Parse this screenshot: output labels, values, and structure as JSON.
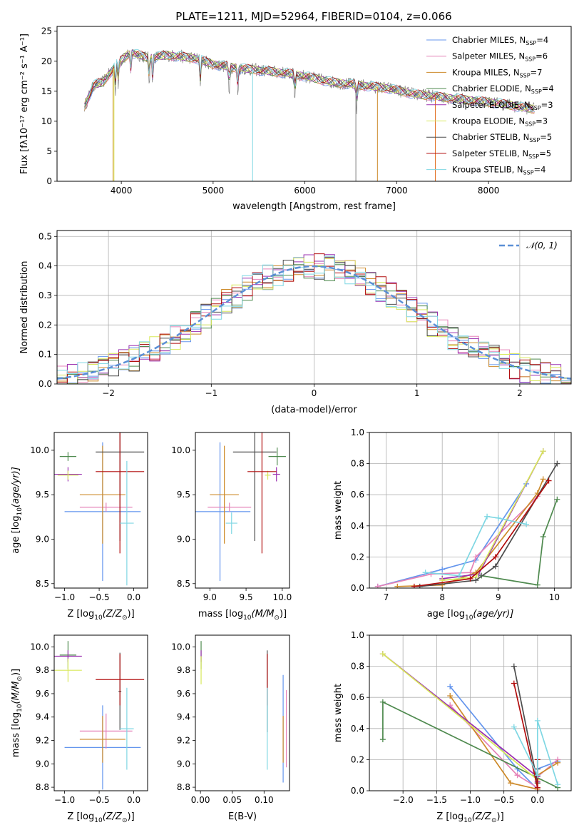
{
  "figure": {
    "title": "PLATE=1211, MJD=52964, FIBERID=0104, z=0.066",
    "colors": {
      "Chabrier MILES": "#6495ed",
      "Salpeter MILES": "#e582b8",
      "Kroupa MILES": "#cd8a2a",
      "Chabrier ELODIE": "#4f8a4f",
      "Salpeter ELODIE": "#9b30b0",
      "Kroupa ELODIE": "#d8e85a",
      "Chabrier STELIB": "#4d4d4d",
      "Salpeter STELIB": "#b20e0e",
      "Kroupa STELIB": "#7fd7e3",
      "data": "#808080",
      "highlight": "#e06a1a",
      "normal": "#5b8fd6"
    }
  },
  "chart_data": [
    {
      "id": "spectrum",
      "type": "line",
      "title": "PLATE=1211, MJD=52964, FIBERID=0104, z=0.066",
      "xlabel": "wavelength [Angstrom, rest frame]",
      "ylabel": "Flux [fλ10⁻¹⁷ erg cm⁻² s⁻¹ A⁻¹]",
      "xlim": [
        3300,
        8900
      ],
      "ylim": [
        0,
        25.8
      ],
      "xticks": [
        4000,
        5000,
        6000,
        7000,
        8000
      ],
      "yticks": [
        0,
        5,
        10,
        15,
        20,
        25
      ],
      "legend_position": "top-right",
      "legend": [
        {
          "name": "Chabrier MILES",
          "nssp": "4"
        },
        {
          "name": "Salpeter MILES",
          "nssp": "6"
        },
        {
          "name": "Kroupa MILES",
          "nssp": "7"
        },
        {
          "name": "Chabrier ELODIE",
          "nssp": "4"
        },
        {
          "name": "Salpeter ELODIE",
          "nssp": "3"
        },
        {
          "name": "Kroupa ELODIE",
          "nssp": "3"
        },
        {
          "name": "Chabrier STELIB",
          "nssp": "5"
        },
        {
          "name": "Salpeter STELIB",
          "nssp": "5"
        },
        {
          "name": "Kroupa STELIB",
          "nssp": "4"
        }
      ],
      "continuum": [
        [
          3600,
          12.5
        ],
        [
          3700,
          16
        ],
        [
          3800,
          16.5
        ],
        [
          3950,
          19.5
        ],
        [
          4100,
          21.5
        ],
        [
          4300,
          20.5
        ],
        [
          4500,
          21
        ],
        [
          4800,
          20.5
        ],
        [
          5000,
          19.5
        ],
        [
          5200,
          19
        ],
        [
          5500,
          18.5
        ],
        [
          5800,
          18
        ],
        [
          6000,
          17.5
        ],
        [
          6300,
          16.5
        ],
        [
          6600,
          16
        ],
        [
          6900,
          15.5
        ],
        [
          7200,
          14.5
        ],
        [
          7500,
          14
        ],
        [
          7800,
          13.5
        ],
        [
          8100,
          13
        ],
        [
          8500,
          12
        ]
      ],
      "grid": false
    },
    {
      "id": "residuals",
      "type": "line",
      "xlabel": "(data-model)/error",
      "ylabel": "Normed distribution",
      "xlim": [
        -2.5,
        2.5
      ],
      "ylim": [
        0,
        0.52
      ],
      "xticks": [
        -2,
        -1,
        0,
        1,
        2
      ],
      "yticks": [
        0.0,
        0.1,
        0.2,
        0.3,
        0.4,
        0.5
      ],
      "legend_label": "𝒩(0, 1)",
      "legend_position": "top-right",
      "normal_curve": {
        "mean": 0,
        "sigma": 1
      },
      "grid": true
    },
    {
      "id": "age-vs-z",
      "type": "scatter",
      "xlabel_plain": "Z [log",
      "xlabel_tail": "(Z/Z",
      "xlabel_end": ")]",
      "ylabel_plain": "age  [log",
      "ylabel_tail": "(age/yr)]",
      "xlim": [
        -1.15,
        0.2
      ],
      "ylim": [
        8.45,
        10.2
      ],
      "xticks": [
        -1.0,
        -0.5,
        0.0
      ],
      "yticks": [
        8.5,
        9.0,
        9.5,
        10.0
      ],
      "points": [
        {
          "series": "Chabrier MILES",
          "x": -0.45,
          "y": 9.31,
          "xerr": 0.55,
          "yerr": 0.78
        },
        {
          "series": "Salpeter MILES",
          "x": -0.4,
          "y": 9.36,
          "xerr": 0.38,
          "yerr": 0.05
        },
        {
          "series": "Kroupa MILES",
          "x": -0.45,
          "y": 9.5,
          "xerr": 0.33,
          "yerr": 0.55
        },
        {
          "series": "Chabrier ELODIE",
          "x": -0.95,
          "y": 9.93,
          "xerr": 0.12,
          "yerr": 0.05
        },
        {
          "series": "Salpeter ELODIE",
          "x": -0.95,
          "y": 9.73,
          "xerr": 0.2,
          "yerr": 0.08
        },
        {
          "series": "Kroupa ELODIE",
          "x": -0.95,
          "y": 9.72,
          "xerr": 0.15,
          "yerr": 0.05
        },
        {
          "series": "Chabrier STELIB",
          "x": -0.2,
          "y": 9.98,
          "xerr": 0.35,
          "yerr": 1.0
        },
        {
          "series": "Salpeter STELIB",
          "x": -0.2,
          "y": 9.76,
          "xerr": 0.35,
          "yerr": 0.92
        },
        {
          "series": "Kroupa STELIB",
          "x": -0.1,
          "y": 9.18,
          "xerr": 0.1,
          "yerr": 0.7
        }
      ]
    },
    {
      "id": "age-vs-mass",
      "type": "scatter",
      "xlabel_plain": "mass [log",
      "xlabel_tail": "(M/M",
      "xlabel_end": ")]",
      "xlim": [
        8.8,
        10.1
      ],
      "ylim": [
        8.45,
        10.2
      ],
      "xticks": [
        9.0,
        9.5,
        10.0
      ],
      "yticks": [
        8.5,
        9.0,
        9.5,
        10.0
      ],
      "points": [
        {
          "series": "Chabrier MILES",
          "x": 9.14,
          "y": 9.31,
          "xerr": 0.42,
          "yerr": 0.78
        },
        {
          "series": "Salpeter MILES",
          "x": 9.27,
          "y": 9.36,
          "xerr": 0.3,
          "yerr": 0.05
        },
        {
          "series": "Kroupa MILES",
          "x": 9.2,
          "y": 9.5,
          "xerr": 0.2,
          "yerr": 0.55
        },
        {
          "series": "Chabrier ELODIE",
          "x": 9.93,
          "y": 9.93,
          "xerr": 0.12,
          "yerr": 0.1
        },
        {
          "series": "Salpeter ELODIE",
          "x": 9.92,
          "y": 9.73,
          "xerr": 0.05,
          "yerr": 0.08
        },
        {
          "series": "Kroupa ELODIE",
          "x": 9.8,
          "y": 9.72,
          "xerr": 0.04,
          "yerr": 0.05
        },
        {
          "series": "Chabrier STELIB",
          "x": 9.62,
          "y": 9.98,
          "xerr": 0.3,
          "yerr": 1.0
        },
        {
          "series": "Salpeter STELIB",
          "x": 9.72,
          "y": 9.76,
          "xerr": 0.2,
          "yerr": 0.92
        },
        {
          "series": "Kroupa STELIB",
          "x": 9.3,
          "y": 9.18,
          "xerr": 0.08,
          "yerr": 0.12
        }
      ]
    },
    {
      "id": "mass-weight-vs-age",
      "type": "line",
      "xlabel_plain": "age  [log",
      "xlabel_tail": "(age/yr)]",
      "ylabel": "mass weight",
      "xlim": [
        6.7,
        10.3
      ],
      "ylim": [
        0,
        1
      ],
      "xticks": [
        7,
        8,
        9,
        10
      ],
      "yticks": [
        0.0,
        0.2,
        0.4,
        0.6,
        0.8,
        1.0
      ],
      "grid": true,
      "series": [
        {
          "name": "Chabrier MILES",
          "points": [
            [
              6.85,
              0.01
            ],
            [
              8.0,
              0.12
            ],
            [
              8.6,
              0.18
            ],
            [
              9.5,
              0.67
            ]
          ]
        },
        {
          "name": "Salpeter MILES",
          "points": [
            [
              6.85,
              0.01
            ],
            [
              7.8,
              0.09
            ],
            [
              8.5,
              0.1
            ],
            [
              8.6,
              0.2
            ],
            [
              9.7,
              0.59
            ]
          ]
        },
        {
          "name": "Kroupa MILES",
          "points": [
            [
              7.2,
              0.01
            ],
            [
              8.0,
              0.02
            ],
            [
              8.6,
              0.1
            ],
            [
              9.7,
              0.61
            ],
            [
              9.8,
              0.7
            ]
          ]
        },
        {
          "name": "Chabrier ELODIE",
          "points": [
            [
              8.7,
              0.08
            ],
            [
              9.7,
              0.02
            ],
            [
              9.8,
              0.33
            ],
            [
              10.05,
              0.57
            ]
          ]
        },
        {
          "name": "Salpeter ELODIE",
          "points": [
            [
              8.0,
              0.06
            ],
            [
              8.65,
              0.09
            ],
            [
              9.8,
              0.88
            ]
          ]
        },
        {
          "name": "Kroupa ELODIE",
          "points": [
            [
              8.0,
              0.05
            ],
            [
              8.6,
              0.07
            ],
            [
              9.8,
              0.88
            ]
          ]
        },
        {
          "name": "Chabrier STELIB",
          "points": [
            [
              7.6,
              0.01
            ],
            [
              8.6,
              0.05
            ],
            [
              8.95,
              0.14
            ],
            [
              10.05,
              0.8
            ]
          ]
        },
        {
          "name": "Salpeter STELIB",
          "points": [
            [
              7.5,
              0.01
            ],
            [
              8.5,
              0.06
            ],
            [
              8.95,
              0.2
            ],
            [
              9.9,
              0.69
            ]
          ]
        },
        {
          "name": "Kroupa STELIB",
          "points": [
            [
              7.7,
              0.1
            ],
            [
              8.3,
              0.08
            ],
            [
              8.8,
              0.46
            ],
            [
              9.0,
              0.45
            ],
            [
              9.5,
              0.41
            ]
          ]
        }
      ]
    },
    {
      "id": "mass-vs-z",
      "type": "scatter",
      "xlabel_plain": "Z [log",
      "xlabel_tail": "(Z/Z",
      "xlabel_end": ")]",
      "ylabel_plain": "mass [log",
      "ylabel_tail": "(M/M",
      "ylabel_end": ")]",
      "xlim": [
        -1.15,
        0.2
      ],
      "ylim": [
        8.77,
        10.1
      ],
      "xticks": [
        -1.0,
        -0.5,
        0.0
      ],
      "yticks": [
        8.8,
        9.0,
        9.2,
        9.4,
        9.6,
        9.8,
        10.0
      ],
      "points": [
        {
          "series": "Chabrier MILES",
          "x": -0.45,
          "y": 9.14,
          "xerr": 0.55,
          "yerr": 0.36
        },
        {
          "series": "Salpeter MILES",
          "x": -0.4,
          "y": 9.28,
          "xerr": 0.38,
          "yerr": 0.15
        },
        {
          "series": "Kroupa MILES",
          "x": -0.45,
          "y": 9.21,
          "xerr": 0.33,
          "yerr": 0.2
        },
        {
          "series": "Chabrier ELODIE",
          "x": -0.95,
          "y": 9.93,
          "xerr": 0.12,
          "yerr": 0.12
        },
        {
          "series": "Salpeter ELODIE",
          "x": -0.95,
          "y": 9.92,
          "xerr": 0.2,
          "yerr": 0.05
        },
        {
          "series": "Kroupa ELODIE",
          "x": -0.95,
          "y": 9.8,
          "xerr": 0.2,
          "yerr": 0.1
        },
        {
          "series": "Chabrier STELIB",
          "x": -0.2,
          "y": 9.62,
          "xerr": 0.02,
          "yerr": 0.33
        },
        {
          "series": "Salpeter STELIB",
          "x": -0.2,
          "y": 9.72,
          "xerr": 0.35,
          "yerr": 0.22
        },
        {
          "series": "Kroupa STELIB",
          "x": -0.1,
          "y": 9.3,
          "xerr": 0.1,
          "yerr": 0.35
        }
      ]
    },
    {
      "id": "mass-vs-ebv",
      "type": "scatter",
      "xlabel": "E(B-V)",
      "xlim": [
        -0.008,
        0.14
      ],
      "ylim": [
        8.77,
        10.1
      ],
      "xticks": [
        0.0,
        0.05,
        0.1
      ],
      "xtick_labels": [
        "0.00",
        "0.05",
        "0.10"
      ],
      "yticks": [
        8.8,
        9.0,
        9.2,
        9.4,
        9.6,
        9.8,
        10.0
      ],
      "points": [
        {
          "series": "Chabrier MILES",
          "x": 0.13,
          "y": 9.3,
          "xerr": 0,
          "yerr": 0.46
        },
        {
          "series": "Salpeter MILES",
          "x": 0.135,
          "y": 9.3,
          "xerr": 0,
          "yerr": 0.33
        },
        {
          "series": "Kroupa MILES",
          "x": 0.13,
          "y": 9.21,
          "xerr": 0,
          "yerr": 0.2
        },
        {
          "series": "Chabrier ELODIE",
          "x": 0.001,
          "y": 9.93,
          "xerr": 0,
          "yerr": 0.12
        },
        {
          "series": "Salpeter ELODIE",
          "x": 0.001,
          "y": 9.92,
          "xerr": 0,
          "yerr": 0.05
        },
        {
          "series": "Kroupa ELODIE",
          "x": 0.001,
          "y": 9.8,
          "xerr": 0,
          "yerr": 0.12
        },
        {
          "series": "Chabrier STELIB",
          "x": 0.105,
          "y": 9.62,
          "xerr": 0,
          "yerr": 0.35
        },
        {
          "series": "Salpeter STELIB",
          "x": 0.105,
          "y": 9.72,
          "xerr": 0,
          "yerr": 0.22
        },
        {
          "series": "Kroupa STELIB",
          "x": 0.105,
          "y": 9.3,
          "xerr": 0,
          "yerr": 0.35
        }
      ]
    },
    {
      "id": "mass-weight-vs-z",
      "type": "line",
      "xlabel_plain": "Z [log",
      "xlabel_tail": "(Z/Z",
      "xlabel_end": ")]",
      "ylabel": "mass weight",
      "xlim": [
        -2.5,
        0.5
      ],
      "ylim": [
        0,
        1
      ],
      "xticks": [
        -2.0,
        -1.5,
        -1.0,
        -0.5,
        0.0
      ],
      "yticks": [
        0.0,
        0.2,
        0.4,
        0.6,
        0.8,
        1.0
      ],
      "grid": true,
      "series": [
        {
          "name": "Chabrier MILES",
          "points": [
            [
              -1.3,
              0.67
            ],
            [
              -0.3,
              0.14
            ],
            [
              0.0,
              0.01
            ],
            [
              0.0,
              0.14
            ],
            [
              0.3,
              0.19
            ]
          ]
        },
        {
          "name": "Salpeter MILES",
          "points": [
            [
              -1.3,
              0.55
            ],
            [
              -0.3,
              0.1
            ],
            [
              0.0,
              0.02
            ],
            [
              0.0,
              0.09
            ],
            [
              0.3,
              0.2
            ]
          ]
        },
        {
          "name": "Kroupa MILES",
          "points": [
            [
              -1.3,
              0.61
            ],
            [
              -0.4,
              0.05
            ],
            [
              0.0,
              0.01
            ],
            [
              0.0,
              0.1
            ],
            [
              0.3,
              0.18
            ]
          ]
        },
        {
          "name": "Chabrier ELODIE",
          "points": [
            [
              -2.3,
              0.33
            ],
            [
              -2.3,
              0.57
            ],
            [
              0.3,
              0.02
            ]
          ]
        },
        {
          "name": "Salpeter ELODIE",
          "points": [
            [
              -2.3,
              0.88
            ],
            [
              0.0,
              0.09
            ],
            [
              0.0,
              0.06
            ]
          ]
        },
        {
          "name": "Kroupa ELODIE",
          "points": [
            [
              -2.3,
              0.88
            ],
            [
              0.0,
              0.07
            ],
            [
              0.0,
              0.05
            ]
          ]
        },
        {
          "name": "Chabrier STELIB",
          "points": [
            [
              -0.35,
              0.8
            ],
            [
              0.0,
              0.05
            ],
            [
              0.0,
              0.14
            ]
          ]
        },
        {
          "name": "Salpeter STELIB",
          "points": [
            [
              -0.35,
              0.69
            ],
            [
              0.0,
              0.02
            ],
            [
              0.0,
              0.2
            ]
          ]
        },
        {
          "name": "Kroupa STELIB",
          "points": [
            [
              -0.35,
              0.41
            ],
            [
              0.0,
              0.1
            ],
            [
              0.0,
              0.45
            ],
            [
              0.3,
              0.04
            ]
          ]
        }
      ]
    }
  ]
}
